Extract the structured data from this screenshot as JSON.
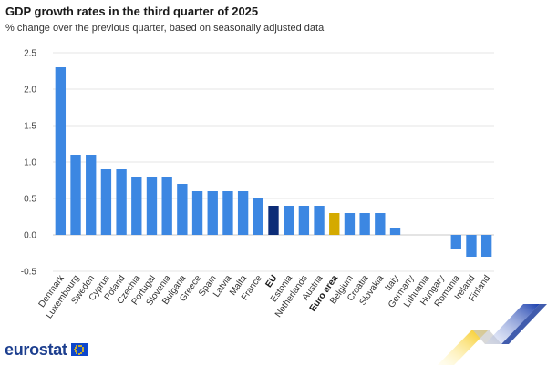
{
  "chart_data": {
    "type": "bar",
    "title": "GDP growth rates in the third quarter of 2025",
    "subtitle": "% change over the previous quarter, based on seasonally adjusted data",
    "categories": [
      "Denmark",
      "Luxembourg",
      "Sweden",
      "Cyprus",
      "Poland",
      "Czechia",
      "Portugal",
      "Slovenia",
      "Bulgaria",
      "Greece",
      "Spain",
      "Latvia",
      "Malta",
      "France",
      "EU",
      "Estonia",
      "Netherlands",
      "Austria",
      "Euro area",
      "Belgium",
      "Croatia",
      "Slovakia",
      "Italy",
      "Germany",
      "Lithuania",
      "Hungary",
      "Romania",
      "Ireland",
      "Finland"
    ],
    "values": [
      2.3,
      1.1,
      1.1,
      0.9,
      0.9,
      0.8,
      0.8,
      0.8,
      0.7,
      0.6,
      0.6,
      0.6,
      0.6,
      0.5,
      0.4,
      0.4,
      0.4,
      0.4,
      0.3,
      0.3,
      0.3,
      0.3,
      0.1,
      0.0,
      0.0,
      0.0,
      -0.2,
      -0.3,
      -0.3
    ],
    "highlight": {
      "EU": "#0c2c77",
      "Euro area": "#d4aa00"
    },
    "bold_categories": [
      "EU",
      "Euro area"
    ],
    "bar_color": "#3c87e2",
    "ylim": [
      -0.5,
      2.5
    ],
    "yticks": [
      2.5,
      2.0,
      1.5,
      1.0,
      0.5,
      0.0,
      -0.5
    ],
    "ytick_labels": [
      "2.5",
      "2.0",
      "1.5",
      "1.0",
      "0.5",
      "0.0",
      "-0.5"
    ],
    "grid": true,
    "xlabel": "",
    "ylabel": ""
  },
  "branding": {
    "logo_text": "eurostat",
    "logo_color": "#1d3f8f"
  }
}
